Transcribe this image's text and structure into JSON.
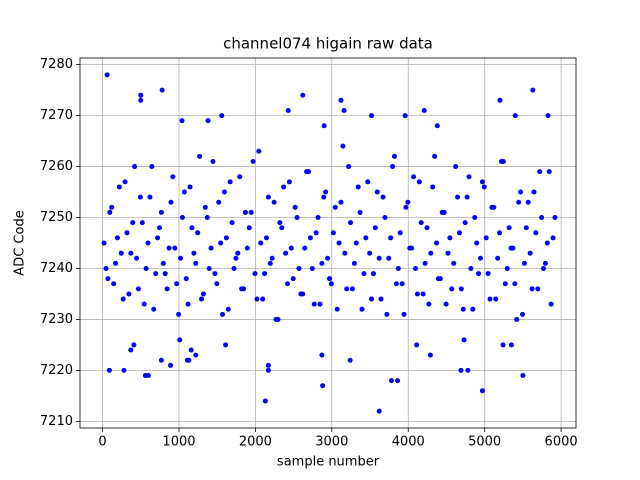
{
  "chart_data": {
    "type": "scatter",
    "title": "channel074 higain raw data",
    "x_label": "sample number",
    "y_label": "ADC Code",
    "color": "#0000ff",
    "grid": true,
    "xlim": [
      -295,
      6195
    ],
    "ylim": [
      7208.7,
      7281.3
    ],
    "xticks": [
      0,
      1000,
      2000,
      3000,
      4000,
      5000,
      6000
    ],
    "yticks": [
      7210,
      7220,
      7230,
      7240,
      7250,
      7260,
      7270,
      7280
    ],
    "x": [
      20,
      70,
      120,
      170,
      220,
      270,
      320,
      370,
      420,
      470,
      520,
      570,
      620,
      670,
      720,
      770,
      820,
      870,
      920,
      970,
      1020,
      1070,
      1120,
      1170,
      1220,
      1270,
      1320,
      1370,
      1420,
      1470,
      1520,
      1570,
      1620,
      1670,
      1720,
      1770,
      1820,
      1870,
      1920,
      1970,
      2020,
      2070,
      2120,
      2170,
      2220,
      2270,
      2320,
      2370,
      2420,
      2470,
      2520,
      2570,
      2620,
      2670,
      2720,
      2770,
      2820,
      2870,
      2920,
      2970,
      3020,
      3070,
      3120,
      3170,
      3220,
      3270,
      3320,
      3370,
      3420,
      3470,
      3520,
      3570,
      3620,
      3670,
      3720,
      3770,
      3820,
      3870,
      3920,
      3970,
      4020,
      4070,
      4120,
      4170,
      4220,
      4270,
      4320,
      4370,
      4420,
      4470,
      4520,
      4570,
      4620,
      4670,
      4720,
      4770,
      4820,
      4870,
      4920,
      4970,
      5020,
      5070,
      5120,
      5170,
      5220,
      5270,
      5320,
      5370,
      5420,
      5470,
      5520,
      5570,
      5620,
      5670,
      5720,
      5770,
      5820,
      5870,
      5920,
      45,
      95,
      145,
      195,
      245,
      295,
      345,
      395,
      445,
      495,
      545,
      595,
      645,
      695,
      745,
      795,
      845,
      895,
      945,
      995,
      1045,
      1095,
      1145,
      1195,
      1245,
      1295,
      1345,
      1395,
      1445,
      1495,
      1545,
      1595,
      1645,
      1695,
      1745,
      1795,
      1845,
      1895,
      1945,
      1995,
      2045,
      2095,
      2145,
      2195,
      2245,
      2295,
      2345,
      2395,
      2445,
      2495,
      2545,
      2595,
      2645,
      2695,
      2745,
      2795,
      2845,
      2895,
      2945,
      2995,
      3045,
      3095,
      3145,
      3195,
      3245,
      3295,
      3345,
      3395,
      3445,
      3495,
      3545,
      3595,
      3645,
      3695,
      3745,
      3795,
      3845,
      3895,
      3945,
      3995,
      4045,
      4095,
      4145,
      4195,
      4245,
      4295,
      4345,
      4395,
      4445,
      4495,
      4545,
      4595,
      4645,
      4695,
      4745,
      4795,
      4845,
      4895,
      4945,
      4995,
      5045,
      5095,
      5145,
      5195,
      5245,
      5295,
      5345,
      5395,
      5445,
      5495,
      5545,
      5595,
      5645,
      5695,
      5745,
      5795,
      5845,
      5895,
      60,
      780,
      500,
      500,
      2620,
      5630,
      3120,
      5200,
      3620,
      2130,
      4970,
      2880,
      3780,
      3860,
      5500,
      560,
      600,
      90,
      280,
      2170,
      2170,
      4690,
      4780,
      1220,
      2870,
      1110,
      1130,
      770,
      890,
      1010,
      1160,
      1610,
      3240,
      4290,
      5240,
      5350,
      370,
      410,
      4110,
      4730,
      2430,
      4210,
      3960,
      1560,
      3160,
      3520,
      5400,
      5830,
      1040,
      1380,
      2900,
      4380
    ],
    "values": [
      7245,
      7238,
      7252,
      7241,
      7256,
      7234,
      7247,
      7243,
      7260,
      7236,
      7249,
      7240,
      7254,
      7232,
      7246,
      7251,
      7239,
      7244,
      7258,
      7237,
      7242,
      7255,
      7233,
      7248,
      7241,
      7262,
      7235,
      7250,
      7244,
      7239,
      7253,
      7231,
      7246,
      7257,
      7240,
      7243,
      7236,
      7251,
      7248,
      7261,
      7234,
      7245,
      7239,
      7254,
      7242,
      7230,
      7249,
      7256,
      7237,
      7244,
      7252,
      7240,
      7235,
      7259,
      7246,
      7233,
      7250,
      7241,
      7255,
      7238,
      7247,
      7232,
      7253,
      7243,
      7260,
      7236,
      7245,
      7251,
      7239,
      7257,
      7234,
      7248,
      7242,
      7254,
      7231,
      7246,
      7262,
      7240,
      7237,
      7252,
      7244,
      7258,
      7235,
      7249,
      7241,
      7233,
      7256,
      7245,
      7238,
      7251,
      7243,
      7236,
      7260,
      7247,
      7232,
      7254,
      7240,
      7250,
      7239,
      7257,
      7246,
      7234,
      7252,
      7242,
      7261,
      7237,
      7248,
      7244,
      7230,
      7255,
      7241,
      7253,
      7236,
      7247,
      7259,
      7240,
      7245,
      7233,
      7250,
      7240,
      7251,
      7237,
      7246,
      7243,
      7257,
      7235,
      7249,
      7242,
      7254,
      7233,
      7245,
      7260,
      7239,
      7248,
      7241,
      7236,
      7253,
      7244,
      7231,
      7250,
      7238,
      7256,
      7243,
      7247,
      7234,
      7252,
      7240,
      7261,
      7237,
      7245,
      7255,
      7232,
      7249,
      7242,
      7258,
      7236,
      7244,
      7251,
      7239,
      7263,
      7234,
      7246,
      7241,
      7253,
      7230,
      7248,
      7243,
      7257,
      7238,
      7250,
      7235,
      7244,
      7259,
      7240,
      7247,
      7233,
      7254,
      7242,
      7237,
      7252,
      7245,
      7264,
      7236,
      7249,
      7241,
      7256,
      7232,
      7246,
      7243,
      7239,
      7255,
      7234,
      7250,
      7242,
      7260,
      7237,
      7247,
      7231,
      7253,
      7244,
      7240,
      7257,
      7235,
      7248,
      7243,
      7262,
      7238,
      7251,
      7233,
      7246,
      7241,
      7254,
      7236,
      7249,
      7258,
      7232,
      7245,
      7242,
      7256,
      7239,
      7252,
      7234,
      7247,
      7261,
      7240,
      7244,
      7237,
      7253,
      7231,
      7248,
      7243,
      7255,
      7236,
      7250,
      7241,
      7259,
      7246,
      7278,
      7275,
      7274,
      7273,
      7274,
      7275,
      7273,
      7273,
      7212,
      7214,
      7216,
      7217,
      7218,
      7218,
      7219,
      7219,
      7219,
      7220,
      7220,
      7220,
      7221,
      7220,
      7220,
      7223,
      7223,
      7222,
      7222,
      7222,
      7221,
      7226,
      7224,
      7225,
      7222,
      7223,
      7225,
      7225,
      7224,
      7225,
      7225,
      7226,
      7271,
      7271,
      7270,
      7270,
      7271,
      7270,
      7270,
      7270,
      7269,
      7269,
      7268,
      7268
    ]
  }
}
